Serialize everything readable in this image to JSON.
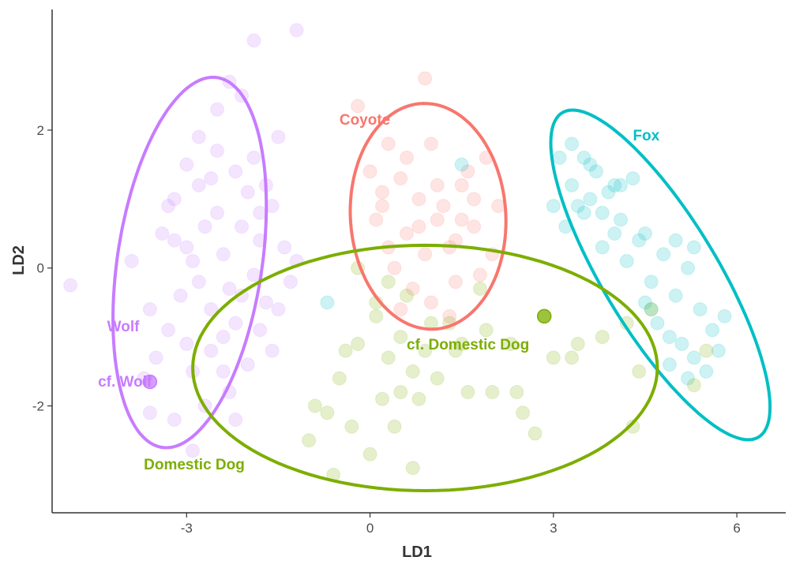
{
  "chart_data": {
    "type": "scatter",
    "title": "",
    "xlabel": "LD1",
    "ylabel": "LD2",
    "xlim": [
      -5.2,
      6.8
    ],
    "ylim": [
      -3.55,
      3.75
    ],
    "x_ticks": [
      -3,
      0,
      3,
      6
    ],
    "y_ticks": [
      -2,
      0,
      2
    ],
    "x_tick_labels": [
      "-3",
      "0",
      "3",
      "6"
    ],
    "y_tick_labels": [
      "-2",
      "0",
      "2"
    ],
    "grid": false,
    "legend": "none",
    "groups": [
      {
        "name": "Wolf",
        "label": "Wolf",
        "color": "#c77cff",
        "label_pos": [
          -4.3,
          -0.92
        ],
        "ellipse": {
          "center": [
            -2.95,
            0.08
          ],
          "a": 2.72,
          "b": 1.18,
          "angle_deg": 80
        },
        "points": [
          [
            -3.6,
            -0.6
          ],
          [
            -3.9,
            0.1
          ],
          [
            -3.4,
            0.5
          ],
          [
            -3.2,
            1.0
          ],
          [
            -3.0,
            1.5
          ],
          [
            -2.8,
            1.9
          ],
          [
            -2.6,
            1.3
          ],
          [
            -2.5,
            0.8
          ],
          [
            -2.4,
            0.2
          ],
          [
            -2.3,
            -0.3
          ],
          [
            -2.2,
            -0.8
          ],
          [
            -2.1,
            0.6
          ],
          [
            -2.0,
            1.1
          ],
          [
            -1.9,
            1.6
          ],
          [
            -1.8,
            0.4
          ],
          [
            -1.7,
            -0.5
          ],
          [
            -1.6,
            0.9
          ],
          [
            -1.5,
            1.9
          ],
          [
            -1.4,
            0.3
          ],
          [
            -1.3,
            -0.2
          ],
          [
            -1.2,
            0.1
          ],
          [
            -1.5,
            -0.6
          ],
          [
            -2.6,
            -1.2
          ],
          [
            -2.8,
            -0.2
          ],
          [
            -3.0,
            0.3
          ],
          [
            -3.3,
            -0.9
          ],
          [
            -3.5,
            -1.3
          ],
          [
            -2.9,
            -1.5
          ],
          [
            -2.7,
            -2.0
          ],
          [
            -3.2,
            -2.2
          ],
          [
            -2.3,
            -1.8
          ],
          [
            -2.0,
            -1.4
          ],
          [
            -1.8,
            -0.9
          ],
          [
            -3.6,
            -2.1
          ],
          [
            -2.5,
            2.3
          ],
          [
            -2.1,
            2.5
          ],
          [
            -2.3,
            2.7
          ],
          [
            -1.9,
            3.3
          ],
          [
            -1.2,
            3.45
          ],
          [
            -4.9,
            -0.25
          ],
          [
            -2.9,
            -2.65
          ],
          [
            -1.6,
            -1.2
          ],
          [
            -2.2,
            1.4
          ],
          [
            -2.7,
            0.6
          ],
          [
            -3.1,
            -0.4
          ],
          [
            -1.9,
            -0.1
          ],
          [
            -2.4,
            -1.0
          ],
          [
            -3.7,
            -1.6
          ],
          [
            -2.2,
            -2.2
          ],
          [
            -1.7,
            1.2
          ],
          [
            -2.6,
            -0.6
          ],
          [
            -3.3,
            0.9
          ],
          [
            -2.8,
            1.2
          ],
          [
            -3.0,
            -1.1
          ],
          [
            -2.4,
            -1.5
          ],
          [
            -2.1,
            -0.4
          ],
          [
            -1.8,
            0.8
          ],
          [
            -2.9,
            0.1
          ],
          [
            -3.2,
            0.4
          ],
          [
            -2.5,
            1.7
          ]
        ],
        "highlight": [
          [
            -3.6,
            -1.65
          ]
        ]
      },
      {
        "name": "Coyote",
        "label": "Coyote",
        "color": "#f8766d",
        "label_pos": [
          -0.5,
          2.08
        ],
        "ellipse": {
          "center": [
            0.95,
            0.75
          ],
          "a": 1.64,
          "b": 1.27,
          "angle_deg": 95
        },
        "points": [
          [
            -0.2,
            2.35
          ],
          [
            0.3,
            1.8
          ],
          [
            0.5,
            1.3
          ],
          [
            0.8,
            1.0
          ],
          [
            1.1,
            0.7
          ],
          [
            1.3,
            0.3
          ],
          [
            0.6,
            0.5
          ],
          [
            0.2,
            0.9
          ],
          [
            0.0,
            1.4
          ],
          [
            1.0,
            1.8
          ],
          [
            1.5,
            1.2
          ],
          [
            1.7,
            0.6
          ],
          [
            1.9,
            1.6
          ],
          [
            2.1,
            0.9
          ],
          [
            0.4,
            0.0
          ],
          [
            0.7,
            -0.3
          ],
          [
            1.0,
            -0.5
          ],
          [
            1.4,
            -0.2
          ],
          [
            1.8,
            -0.1
          ],
          [
            0.9,
            2.75
          ],
          [
            0.3,
            0.3
          ],
          [
            1.2,
            0.9
          ],
          [
            0.6,
            1.6
          ],
          [
            1.6,
            1.4
          ],
          [
            0.9,
            0.2
          ],
          [
            1.3,
            -0.7
          ],
          [
            1.5,
            0.7
          ],
          [
            0.2,
            1.1
          ],
          [
            2.0,
            0.2
          ],
          [
            0.5,
            -0.6
          ],
          [
            1.1,
            1.2
          ],
          [
            0.8,
            0.6
          ],
          [
            1.4,
            0.4
          ],
          [
            0.1,
            0.7
          ],
          [
            1.7,
            1.0
          ]
        ],
        "highlight": []
      },
      {
        "name": "Fox",
        "label": "Fox",
        "color": "#00bfc4",
        "label_pos": [
          4.3,
          1.85
        ],
        "ellipse": {
          "center": [
            4.75,
            -0.1
          ],
          "a": 2.85,
          "b": 0.9,
          "angle_deg": -55
        },
        "points": [
          [
            3.1,
            1.6
          ],
          [
            3.3,
            1.2
          ],
          [
            3.5,
            0.8
          ],
          [
            3.7,
            1.4
          ],
          [
            3.9,
            1.1
          ],
          [
            4.1,
            0.7
          ],
          [
            4.3,
            1.3
          ],
          [
            3.2,
            0.6
          ],
          [
            3.4,
            0.9
          ],
          [
            3.6,
            1.5
          ],
          [
            3.8,
            0.3
          ],
          [
            4.0,
            0.5
          ],
          [
            4.2,
            0.1
          ],
          [
            4.4,
            0.4
          ],
          [
            4.6,
            -0.2
          ],
          [
            4.8,
            0.2
          ],
          [
            5.0,
            -0.4
          ],
          [
            5.2,
            0.0
          ],
          [
            5.4,
            -0.6
          ],
          [
            5.6,
            -0.9
          ],
          [
            4.5,
            -0.5
          ],
          [
            4.7,
            -0.8
          ],
          [
            4.9,
            -1.0
          ],
          [
            5.1,
            -1.1
          ],
          [
            5.3,
            -1.3
          ],
          [
            5.5,
            -1.5
          ],
          [
            3.3,
            1.8
          ],
          [
            3.5,
            1.6
          ],
          [
            4.0,
            1.2
          ],
          [
            4.5,
            0.5
          ],
          [
            3.0,
            0.9
          ],
          [
            5.8,
            -0.7
          ],
          [
            4.9,
            -1.4
          ],
          [
            5.2,
            -1.6
          ],
          [
            1.5,
            1.5
          ],
          [
            -0.7,
            -0.5
          ],
          [
            3.6,
            1.0
          ],
          [
            4.1,
            1.2
          ],
          [
            3.8,
            0.8
          ],
          [
            5.0,
            0.4
          ],
          [
            5.3,
            0.3
          ],
          [
            4.6,
            -0.6
          ],
          [
            5.7,
            -1.2
          ]
        ],
        "highlight": []
      },
      {
        "name": "Domestic Dog",
        "label": "Domestic Dog",
        "color": "#7cae00",
        "label_pos": [
          -3.7,
          -2.92
        ],
        "ellipse": {
          "center": [
            0.9,
            -1.45
          ],
          "a": 3.8,
          "b": 1.78,
          "angle_deg": 0
        },
        "points": [
          [
            -1.0,
            -2.5
          ],
          [
            -0.7,
            -2.1
          ],
          [
            -0.5,
            -1.6
          ],
          [
            -0.2,
            -1.1
          ],
          [
            0.1,
            -0.7
          ],
          [
            0.3,
            -1.3
          ],
          [
            0.5,
            -1.8
          ],
          [
            0.7,
            -1.5
          ],
          [
            0.9,
            -1.2
          ],
          [
            1.1,
            -1.6
          ],
          [
            1.3,
            -0.8
          ],
          [
            1.5,
            -1.1
          ],
          [
            1.8,
            -0.3
          ],
          [
            2.0,
            -1.8
          ],
          [
            2.3,
            -1.1
          ],
          [
            2.5,
            -2.1
          ],
          [
            2.7,
            -2.4
          ],
          [
            3.0,
            -1.3
          ],
          [
            3.4,
            -1.1
          ],
          [
            3.8,
            -1.0
          ],
          [
            4.2,
            -0.8
          ],
          [
            4.4,
            -1.5
          ],
          [
            4.6,
            -0.6
          ],
          [
            5.3,
            -1.7
          ],
          [
            5.5,
            -1.2
          ],
          [
            4.3,
            -2.3
          ],
          [
            0.0,
            -2.7
          ],
          [
            -0.6,
            -3.0
          ],
          [
            0.7,
            -2.9
          ],
          [
            -0.3,
            -2.3
          ],
          [
            0.4,
            -2.3
          ],
          [
            -0.9,
            -2.0
          ],
          [
            1.6,
            -1.8
          ],
          [
            0.1,
            -0.5
          ],
          [
            -0.2,
            0.0
          ],
          [
            0.6,
            -0.4
          ],
          [
            1.4,
            -1.2
          ],
          [
            2.4,
            -1.8
          ],
          [
            3.3,
            -1.3
          ],
          [
            0.8,
            -1.9
          ],
          [
            0.2,
            -1.9
          ],
          [
            -0.4,
            -1.2
          ],
          [
            1.9,
            -0.9
          ],
          [
            0.5,
            -1.0
          ],
          [
            1.0,
            -0.8
          ],
          [
            0.3,
            -0.2
          ]
        ],
        "highlight": []
      },
      {
        "name": "cf. Domestic Dog",
        "label": "cf. Domestic Dog",
        "color": "#7cae00",
        "label_pos": [
          0.6,
          -1.18
        ],
        "highlight": [
          [
            2.85,
            -0.7
          ]
        ]
      },
      {
        "name": "cf. Wolf",
        "label": "cf. Wolf",
        "color": "#c77cff",
        "label_pos": [
          -4.45,
          -1.72
        ],
        "highlight": []
      }
    ]
  }
}
